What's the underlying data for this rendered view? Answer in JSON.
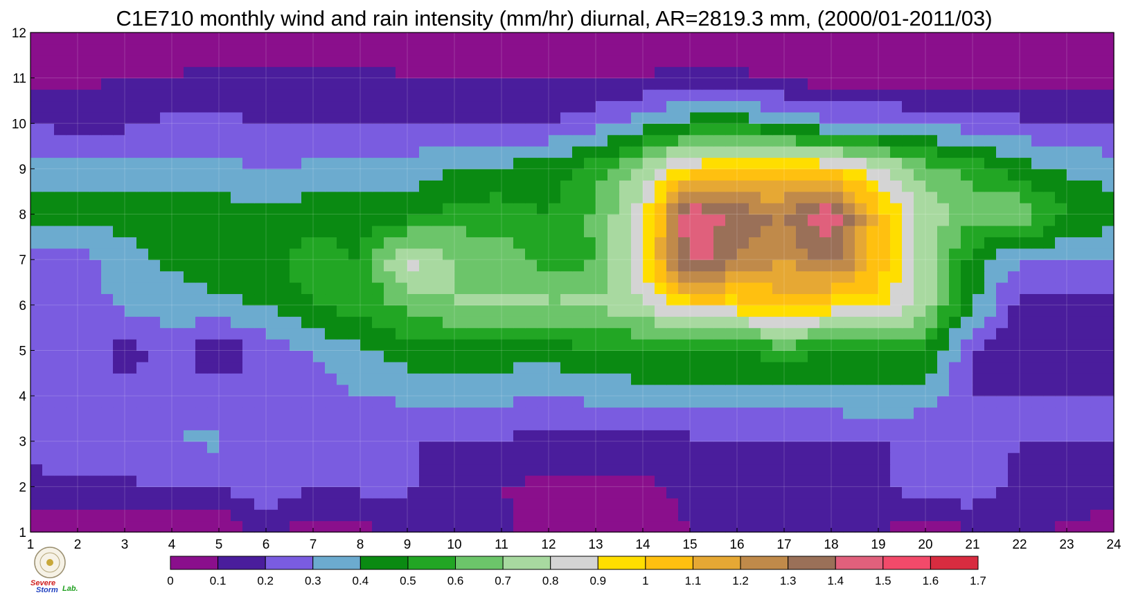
{
  "chart_data": {
    "type": "heatmap",
    "title": "C1E710 monthly wind and rain intensity (mm/hr) diurnal, AR=2819.3 mm, (2000/01-2011/03)",
    "xlabel": "",
    "ylabel": "",
    "xlim": [
      1,
      24
    ],
    "ylim": [
      1,
      12
    ],
    "x_ticks": [
      "1",
      "2",
      "3",
      "4",
      "5",
      "6",
      "7",
      "8",
      "9",
      "10",
      "11",
      "12",
      "13",
      "14",
      "15",
      "16",
      "17",
      "18",
      "19",
      "20",
      "21",
      "22",
      "23",
      "24"
    ],
    "y_ticks": [
      "1",
      "2",
      "3",
      "4",
      "5",
      "6",
      "7",
      "8",
      "9",
      "10",
      "11",
      "12"
    ],
    "grid": true,
    "colorbar": {
      "levels": [
        "0",
        "0.1",
        "0.2",
        "0.3",
        "0.4",
        "0.5",
        "0.6",
        "0.7",
        "0.8",
        "0.9",
        "1",
        "1.1",
        "1.2",
        "1.3",
        "1.4",
        "1.5",
        "1.6",
        "1.7"
      ],
      "colors": [
        "#8a0f8c",
        "#4a1d9c",
        "#7a5ce0",
        "#6cabcf",
        "#0a8a12",
        "#22a624",
        "#6cc56a",
        "#a8d9a0",
        "#d4d4d4",
        "#ffde00",
        "#ffc010",
        "#e6a834",
        "#c08a4a",
        "#9a7058",
        "#e0607c",
        "#f24a6a",
        "#d82c40"
      ]
    },
    "contour_line_color": "#f0b030",
    "values": [
      [
        0.03,
        0.04,
        0.03,
        0.02,
        0.02,
        0.12,
        0.05,
        0.08,
        0.1,
        0.12,
        0.12,
        0.05,
        0.05,
        0.05,
        0.1,
        0.1,
        0.1,
        0.1,
        0.1,
        0.05,
        0.08,
        0.12,
        0.08,
        0.06
      ],
      [
        0.15,
        0.18,
        0.18,
        0.22,
        0.2,
        0.28,
        0.2,
        0.22,
        0.22,
        0.1,
        0.1,
        0.08,
        0.08,
        0.08,
        0.12,
        0.12,
        0.14,
        0.15,
        0.18,
        0.25,
        0.28,
        0.15,
        0.15,
        0.15
      ],
      [
        0.28,
        0.25,
        0.28,
        0.3,
        0.32,
        0.2,
        0.2,
        0.22,
        0.2,
        0.2,
        0.2,
        0.15,
        0.15,
        0.15,
        0.18,
        0.18,
        0.18,
        0.2,
        0.2,
        0.2,
        0.3,
        0.2,
        0.2,
        0.2
      ],
      [
        0.3,
        0.25,
        0.25,
        0.25,
        0.25,
        0.25,
        0.25,
        0.3,
        0.32,
        0.32,
        0.32,
        0.3,
        0.33,
        0.35,
        0.35,
        0.35,
        0.35,
        0.35,
        0.38,
        0.35,
        0.2,
        0.2,
        0.2,
        0.2
      ],
      [
        0.3,
        0.3,
        0.15,
        0.25,
        0.12,
        0.25,
        0.3,
        0.38,
        0.45,
        0.45,
        0.45,
        0.45,
        0.48,
        0.5,
        0.5,
        0.5,
        0.55,
        0.5,
        0.5,
        0.5,
        0.2,
        0.15,
        0.15,
        0.15
      ],
      [
        0.28,
        0.25,
        0.32,
        0.35,
        0.38,
        0.4,
        0.5,
        0.55,
        0.62,
        0.7,
        0.72,
        0.72,
        0.72,
        0.8,
        0.95,
        0.95,
        1.05,
        0.95,
        0.95,
        0.75,
        0.42,
        0.15,
        0.15,
        0.15
      ],
      [
        0.25,
        0.25,
        0.35,
        0.42,
        0.45,
        0.48,
        0.55,
        0.5,
        0.85,
        0.7,
        0.65,
        0.55,
        0.6,
        0.9,
        1.45,
        1.3,
        1.2,
        1.35,
        1.05,
        0.75,
        0.45,
        0.3,
        0.3,
        0.3
      ],
      [
        0.45,
        0.45,
        0.45,
        0.45,
        0.45,
        0.45,
        0.45,
        0.45,
        0.45,
        0.55,
        0.55,
        0.5,
        0.62,
        0.85,
        1.5,
        1.35,
        1.3,
        1.5,
        1.05,
        0.75,
        0.65,
        0.7,
        0.5,
        0.45
      ],
      [
        0.35,
        0.35,
        0.35,
        0.32,
        0.32,
        0.3,
        0.32,
        0.35,
        0.35,
        0.4,
        0.42,
        0.45,
        0.55,
        0.75,
        0.95,
        1.0,
        1.0,
        0.98,
        0.85,
        0.65,
        0.55,
        0.45,
        0.38,
        0.35
      ],
      [
        0.2,
        0.15,
        0.18,
        0.22,
        0.22,
        0.2,
        0.2,
        0.2,
        0.2,
        0.2,
        0.2,
        0.2,
        0.25,
        0.35,
        0.45,
        0.45,
        0.4,
        0.3,
        0.3,
        0.28,
        0.25,
        0.22,
        0.2,
        0.2
      ],
      [
        0.05,
        0.08,
        0.1,
        0.1,
        0.12,
        0.12,
        0.12,
        0.12,
        0.1,
        0.1,
        0.1,
        0.1,
        0.1,
        0.1,
        0.12,
        0.12,
        0.08,
        0.05,
        0.05,
        0.05,
        0.05,
        0.05,
        0.05,
        0.05
      ],
      [
        0.05,
        0.05,
        0.05,
        0.05,
        0.05,
        0.05,
        0.05,
        0.05,
        0.05,
        0.05,
        0.05,
        0.05,
        0.05,
        0.05,
        0.05,
        0.05,
        0.05,
        0.05,
        0.05,
        0.05,
        0.05,
        0.05,
        0.05,
        0.05
      ]
    ]
  },
  "logo": {
    "line1": "Severe",
    "line2": "Storm",
    "line3": "Lab."
  }
}
